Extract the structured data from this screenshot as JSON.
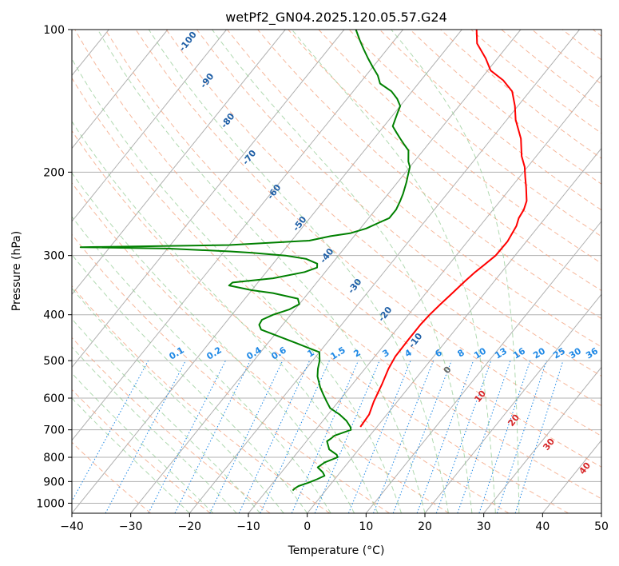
{
  "chart_data": {
    "type": "line",
    "title": "wetPf2_GN04.2025.120.05.57.G24",
    "xlabel": "Temperature (°C)",
    "ylabel": "Pressure (hPa)",
    "xlim": [
      -40,
      50
    ],
    "ylim": [
      1050,
      100
    ],
    "y_scale": "log",
    "grid": true,
    "x_ticks": [
      -40,
      -30,
      -20,
      -10,
      0,
      10,
      20,
      30,
      40,
      50
    ],
    "y_ticks": [
      1000,
      900,
      800,
      700,
      600,
      500,
      400,
      300,
      200,
      100
    ],
    "series": [
      {
        "color": "#ff0000",
        "points": [
          [
            -2.8,
            690
          ],
          [
            -3.0,
            650
          ],
          [
            -4.0,
            610
          ],
          [
            -5.0,
            560
          ],
          [
            -6.0,
            520
          ],
          [
            -6.5,
            490
          ],
          [
            -6.6,
            450
          ],
          [
            -6.6,
            420
          ],
          [
            -6.4,
            400
          ],
          [
            -6.0,
            380
          ],
          [
            -5.5,
            360
          ],
          [
            -5.0,
            340
          ],
          [
            -4.5,
            325
          ],
          [
            -4.0,
            315
          ],
          [
            -3.3,
            300
          ],
          [
            -3.2,
            280
          ],
          [
            -3.8,
            260
          ],
          [
            -4.5,
            250
          ],
          [
            -4.8,
            240
          ],
          [
            -5.5,
            230
          ],
          [
            -7.5,
            215
          ],
          [
            -9.0,
            205
          ],
          [
            -10.5,
            195
          ],
          [
            -12.5,
            185
          ],
          [
            -15.0,
            170
          ],
          [
            -18.5,
            155
          ],
          [
            -20.5,
            145
          ],
          [
            -23.0,
            135
          ],
          [
            -26.0,
            128
          ],
          [
            -29.5,
            122
          ],
          [
            -32.0,
            115
          ],
          [
            -35.5,
            107
          ],
          [
            -37.5,
            100
          ]
        ]
      },
      {
        "color": "#008000",
        "points": [
          [
            -5.6,
            940
          ],
          [
            -5.5,
            930
          ],
          [
            -5.2,
            920
          ],
          [
            -4.0,
            905
          ],
          [
            -3.0,
            890
          ],
          [
            -2.2,
            875
          ],
          [
            -3.0,
            860
          ],
          [
            -4.5,
            840
          ],
          [
            -4.0,
            820
          ],
          [
            -2.5,
            800
          ],
          [
            -3.0,
            790
          ],
          [
            -4.0,
            780
          ],
          [
            -5.0,
            770
          ],
          [
            -6.5,
            740
          ],
          [
            -6.2,
            730
          ],
          [
            -6.0,
            720
          ],
          [
            -5.0,
            710
          ],
          [
            -4.0,
            700
          ],
          [
            -4.5,
            690
          ],
          [
            -6.0,
            670
          ],
          [
            -8.0,
            650
          ],
          [
            -10.5,
            630
          ],
          [
            -12.0,
            610
          ],
          [
            -13.5,
            590
          ],
          [
            -15.0,
            570
          ],
          [
            -17.0,
            540
          ],
          [
            -18.0,
            520
          ],
          [
            -18.8,
            500
          ],
          [
            -20.0,
            480
          ],
          [
            -25.0,
            460
          ],
          [
            -33.0,
            430
          ],
          [
            -34.0,
            420
          ],
          [
            -34.2,
            410
          ],
          [
            -33.0,
            400
          ],
          [
            -31.0,
            390
          ],
          [
            -30.0,
            380
          ],
          [
            -31.0,
            370
          ],
          [
            -36.0,
            360
          ],
          [
            -40.0,
            355
          ],
          [
            -44.5,
            347
          ],
          [
            -44.3,
            342
          ],
          [
            -38.0,
            335
          ],
          [
            -33.5,
            325
          ],
          [
            -32.0,
            318
          ],
          [
            -32.5,
            312
          ],
          [
            -35.0,
            305
          ],
          [
            -39.0,
            300
          ],
          [
            -45.0,
            296
          ],
          [
            -49.0,
            294
          ],
          [
            -60.0,
            290
          ],
          [
            -75.0,
            288
          ],
          [
            -50.0,
            285
          ],
          [
            -37.0,
            279
          ],
          [
            -34.0,
            273
          ],
          [
            -31.0,
            269
          ],
          [
            -29.0,
            263
          ],
          [
            -27.5,
            255
          ],
          [
            -26.5,
            250
          ],
          [
            -26.5,
            240
          ],
          [
            -27.0,
            230
          ],
          [
            -27.5,
            222
          ],
          [
            -28.5,
            210
          ],
          [
            -29.0,
            205
          ],
          [
            -29.5,
            200
          ],
          [
            -30.0,
            195
          ],
          [
            -31.0,
            190
          ],
          [
            -32.5,
            180
          ],
          [
            -34.0,
            175
          ],
          [
            -35.5,
            170
          ],
          [
            -37.0,
            165
          ],
          [
            -38.5,
            160
          ],
          [
            -39.0,
            155
          ],
          [
            -39.5,
            150
          ],
          [
            -40.0,
            145
          ],
          [
            -41.5,
            140
          ],
          [
            -43.5,
            135
          ],
          [
            -46.5,
            130
          ],
          [
            -48.0,
            125
          ],
          [
            -50.0,
            120
          ],
          [
            -52.0,
            115
          ],
          [
            -54.0,
            110
          ],
          [
            -56.0,
            105
          ],
          [
            -58.0,
            100
          ]
        ]
      }
    ],
    "dry_adiabat_labels": [
      "-100",
      "-90",
      "-80",
      "-70",
      "-60",
      "-50",
      "-40",
      "-30",
      "-20",
      "-10",
      "0",
      "10",
      "20",
      "30",
      "40"
    ],
    "mixing_ratio_labels": [
      "0.1",
      "0.2",
      "0.4",
      "0.6",
      "1",
      "1.5",
      "2",
      "3",
      "4",
      "6",
      "8",
      "10",
      "13",
      "16",
      "20",
      "25",
      "30",
      "36"
    ]
  },
  "colors": {
    "temperature": "#ff0000",
    "dewpoint": "#008000",
    "dry_adiabat": "#f4a582",
    "moist_adiabat": "#8fc98f",
    "mixing_ratio": "#1e88e5",
    "isotherm": "#b0b0b0",
    "isobar": "#b0b0b0",
    "label_blue": "#1f5fa6",
    "label_red": "#d62728"
  }
}
